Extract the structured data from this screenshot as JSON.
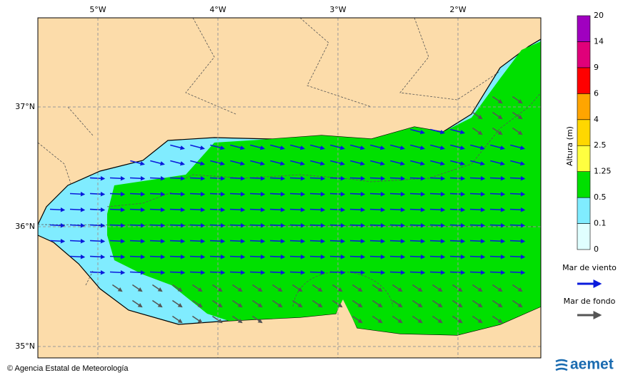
{
  "map": {
    "lon_labels": [
      "5°W",
      "4°W",
      "3°W",
      "2°W"
    ],
    "lat_labels": [
      "37°N",
      "36°N",
      "35°N"
    ]
  },
  "colorbar": {
    "title": "Altura (m)",
    "levels": [
      {
        "label": "0",
        "color": "#e0ffff"
      },
      {
        "label": "0.1",
        "color": "#80ecff"
      },
      {
        "label": "0.5",
        "color": "#00e000"
      },
      {
        "label": "1.25",
        "color": "#ffff40"
      },
      {
        "label": "2.5",
        "color": "#ffd700"
      },
      {
        "label": "4",
        "color": "#ffa500"
      },
      {
        "label": "6",
        "color": "#ff0000"
      },
      {
        "label": "9",
        "color": "#e0007a"
      },
      {
        "label": "14",
        "color": "#a000c0"
      },
      {
        "label": "20",
        "color": null
      }
    ]
  },
  "legend": {
    "wind_sea": {
      "label": "Mar de viento",
      "color": "#0a1adc"
    },
    "swell": {
      "label": "Mar de fondo",
      "color": "#555555"
    }
  },
  "footer": {
    "credit": "© Agencia Estatal de Meteorología",
    "logo": "aemet"
  }
}
